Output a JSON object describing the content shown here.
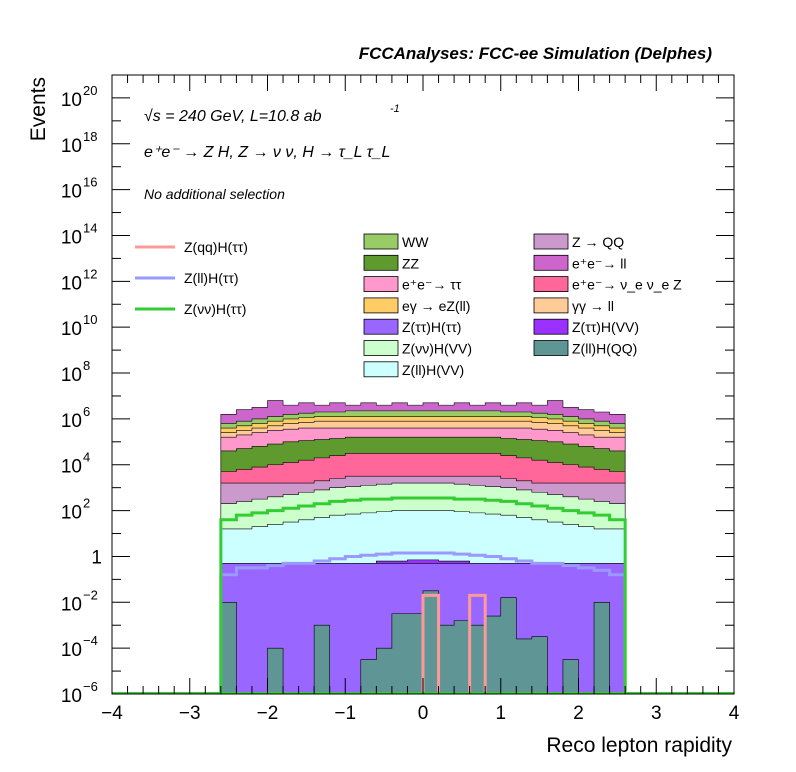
{
  "header": {
    "title": "FCCAnalyses: FCC-ee Simulation (Delphes)"
  },
  "annotations": {
    "energy": "√s = 240 GeV, L=10.8 ab",
    "energy_exp": "-1",
    "process": "e⁺e⁻ → Z H, Z → ν ν, H → τ_L τ_L",
    "selection": "No additional selection"
  },
  "chart_data": {
    "type": "histogram",
    "title": "FCCAnalyses: FCC-ee Simulation (Delphes)",
    "xlabel": "Reco lepton rapidity",
    "ylabel": "Events",
    "xlim": [
      -4,
      4
    ],
    "ylim": [
      1e-06,
      1e+21
    ],
    "yscale": "log",
    "x_ticks": [
      "−4",
      "−3",
      "−2",
      "−1",
      "0",
      "1",
      "2",
      "3",
      "4"
    ],
    "y_ticks": [
      {
        "base": "10",
        "exp": "20"
      },
      {
        "base": "10",
        "exp": "18"
      },
      {
        "base": "10",
        "exp": "16"
      },
      {
        "base": "10",
        "exp": "14"
      },
      {
        "base": "10",
        "exp": "12"
      },
      {
        "base": "10",
        "exp": "10"
      },
      {
        "base": "10",
        "exp": "8"
      },
      {
        "base": "10",
        "exp": "6"
      },
      {
        "base": "10",
        "exp": "4"
      },
      {
        "base": "10",
        "exp": "2"
      },
      {
        "base": "1",
        "exp": ""
      },
      {
        "base": "10",
        "exp": "−2"
      },
      {
        "base": "10",
        "exp": "−4"
      },
      {
        "base": "10",
        "exp": "−6"
      }
    ],
    "grid": false,
    "x_range_filled": [
      -2.6,
      2.6
    ],
    "stack_tops_log10": [
      {
        "name": "Z(ll)H(QQ)",
        "color": "#5f9595",
        "values": [
          -2.0,
          -6.5,
          -6.5,
          -4.0,
          -6.5,
          -6.5,
          -3.0,
          -6.5,
          -6.5,
          -4.5,
          -4.0,
          -2.5,
          -2.5,
          -1.5,
          -3.0,
          -2.8,
          -3.0,
          -2.6,
          -1.8,
          -3.6,
          -3.5,
          -6.5,
          -4.5,
          -6.5,
          -2.0,
          -6.5
        ]
      },
      {
        "name": "Z(ττ)H(VV)",
        "color": "#9b31ff",
        "values": [
          -1.2,
          -1.0,
          -1.0,
          -0.9,
          -0.8,
          -0.7,
          -0.6,
          -0.5,
          -0.4,
          -0.3,
          -0.2,
          -0.2,
          -0.15,
          -0.15,
          -0.2,
          -0.2,
          -0.3,
          -0.4,
          -0.5,
          -0.6,
          -0.7,
          -0.8,
          -0.9,
          -1.0,
          -1.0,
          -1.2
        ]
      },
      {
        "name": "Z(ll)H(VV)",
        "color": "#ccffff",
        "values": [
          1.2,
          1.2,
          1.3,
          1.4,
          1.5,
          1.6,
          1.7,
          1.8,
          1.85,
          1.9,
          1.95,
          2.0,
          2.0,
          2.0,
          2.0,
          1.95,
          1.9,
          1.85,
          1.8,
          1.7,
          1.6,
          1.5,
          1.4,
          1.3,
          1.2,
          1.2
        ]
      },
      {
        "name": "Z(νν)H(VV)",
        "color": "#ccffcc",
        "values": [
          2.3,
          2.4,
          2.5,
          2.6,
          2.7,
          2.8,
          2.9,
          3.0,
          3.05,
          3.1,
          3.15,
          3.2,
          3.2,
          3.2,
          3.2,
          3.15,
          3.1,
          3.05,
          3.0,
          2.9,
          2.8,
          2.7,
          2.6,
          2.5,
          2.4,
          2.3
        ]
      },
      {
        "name": "Z → QQ",
        "color": "#cc99cc",
        "values": [
          3.2,
          3.2,
          3.2,
          3.2,
          3.2,
          3.2,
          3.3,
          3.4,
          3.5,
          3.5,
          3.5,
          3.5,
          3.5,
          3.5,
          3.5,
          3.5,
          3.5,
          3.5,
          3.4,
          3.3,
          3.2,
          3.2,
          3.2,
          3.2,
          3.2,
          3.2
        ]
      },
      {
        "name": "e⁺e⁻ → ν_e ν_e Z",
        "color": "#ff6699",
        "values": [
          3.7,
          3.8,
          3.9,
          4.0,
          4.1,
          4.2,
          4.3,
          4.4,
          4.5,
          4.5,
          4.5,
          4.5,
          4.5,
          4.5,
          4.5,
          4.5,
          4.5,
          4.5,
          4.4,
          4.3,
          4.2,
          4.1,
          4.0,
          3.9,
          3.8,
          3.7
        ]
      },
      {
        "name": "ZZ",
        "color": "#5f9a2e",
        "values": [
          4.6,
          4.7,
          4.8,
          4.9,
          5.0,
          5.05,
          5.1,
          5.15,
          5.2,
          5.2,
          5.2,
          5.2,
          5.2,
          5.2,
          5.2,
          5.2,
          5.2,
          5.2,
          5.15,
          5.1,
          5.05,
          5.0,
          4.9,
          4.8,
          4.7,
          4.6
        ]
      },
      {
        "name": "e⁺e⁻ → ττ",
        "color": "#ff99cc",
        "values": [
          5.2,
          5.3,
          5.4,
          5.5,
          5.55,
          5.6,
          5.6,
          5.6,
          5.6,
          5.6,
          5.6,
          5.6,
          5.6,
          5.6,
          5.6,
          5.6,
          5.6,
          5.6,
          5.6,
          5.6,
          5.55,
          5.5,
          5.4,
          5.3,
          5.2,
          5.2
        ]
      },
      {
        "name": "γγ → ll",
        "color": "#ffcc99",
        "values": [
          5.4,
          5.5,
          5.6,
          5.7,
          5.8,
          5.85,
          5.9,
          5.9,
          5.9,
          5.9,
          5.9,
          5.9,
          5.9,
          5.9,
          5.9,
          5.9,
          5.9,
          5.9,
          5.9,
          5.9,
          5.85,
          5.8,
          5.7,
          5.6,
          5.5,
          5.4
        ]
      },
      {
        "name": "eγ → eZ(ll)",
        "color": "#ffcc66",
        "values": [
          5.6,
          5.7,
          5.8,
          5.9,
          6.0,
          6.05,
          6.1,
          6.1,
          6.1,
          6.1,
          6.1,
          6.1,
          6.1,
          6.1,
          6.1,
          6.1,
          6.1,
          6.1,
          6.1,
          6.1,
          6.05,
          6.0,
          5.9,
          5.8,
          5.7,
          5.6
        ]
      },
      {
        "name": "WW",
        "color": "#99cc66",
        "values": [
          5.8,
          5.9,
          6.0,
          6.1,
          6.2,
          6.25,
          6.3,
          6.3,
          6.35,
          6.35,
          6.35,
          6.35,
          6.35,
          6.35,
          6.35,
          6.35,
          6.35,
          6.35,
          6.3,
          6.3,
          6.25,
          6.2,
          6.1,
          6.0,
          5.9,
          5.8
        ]
      },
      {
        "name": "e⁺e⁻ → ll",
        "color": "#cc66cc",
        "values": [
          6.2,
          6.4,
          6.5,
          6.8,
          6.6,
          6.7,
          6.6,
          6.7,
          6.6,
          6.7,
          6.6,
          6.7,
          6.6,
          6.7,
          6.6,
          6.7,
          6.6,
          6.7,
          6.6,
          6.7,
          6.6,
          6.8,
          6.5,
          6.4,
          6.3,
          6.2
        ]
      },
      {
        "name": "Z(ττ)H(ττ)",
        "color": "#9966ff",
        "values": [
          -0.3,
          -0.3,
          -0.3,
          -0.3,
          -0.3,
          -0.3,
          -0.3,
          -0.3,
          -0.3,
          -0.3,
          -0.3,
          -0.3,
          -0.3,
          -0.3,
          -0.3,
          -0.3,
          -0.3,
          -0.3,
          -0.3,
          -0.3,
          -0.3,
          -0.3,
          -0.3,
          -0.3,
          -0.3,
          -0.3
        ]
      }
    ],
    "line_series_log10": [
      {
        "name": "Z(qq)H(ττ)",
        "color": "#ff9999",
        "segments": [
          {
            "x": [
              0.0,
              0.2
            ],
            "v": -1.7
          },
          {
            "x": [
              0.6,
              0.8
            ],
            "v": -1.7
          }
        ]
      },
      {
        "name": "Z(ll)H(ττ)",
        "color": "#9999ff",
        "values": [
          -0.8,
          -0.5,
          -0.5,
          -0.4,
          -0.3,
          -0.3,
          -0.2,
          -0.1,
          0.0,
          0.05,
          0.1,
          0.15,
          0.15,
          0.15,
          0.15,
          0.1,
          0.05,
          0.0,
          -0.1,
          -0.2,
          -0.3,
          -0.3,
          -0.4,
          -0.5,
          -0.6,
          -0.8
        ]
      },
      {
        "name": "Z(νν)H(ττ)",
        "color": "#33cc33",
        "values": [
          1.6,
          1.8,
          1.9,
          2.0,
          2.1,
          2.2,
          2.3,
          2.4,
          2.45,
          2.5,
          2.5,
          2.55,
          2.55,
          2.55,
          2.55,
          2.5,
          2.5,
          2.45,
          2.4,
          2.3,
          2.2,
          2.1,
          2.0,
          1.9,
          1.8,
          1.6
        ]
      }
    ],
    "legend_left": [
      {
        "label": "Z(qq)H(ττ)",
        "color": "#ff9999"
      },
      {
        "label": "Z(ll)H(ττ)",
        "color": "#9999ff"
      },
      {
        "label": "Z(νν)H(ττ)",
        "color": "#33cc33"
      }
    ],
    "legend_mid": [
      {
        "label": "WW",
        "color": "#99cc66"
      },
      {
        "label": "ZZ",
        "color": "#5f9a2e"
      },
      {
        "label": "e⁺e⁻→ ττ",
        "color": "#ff99cc"
      },
      {
        "label": "eγ → eZ(ll)",
        "color": "#ffcc66"
      },
      {
        "label": "Z(ττ)H(ττ)",
        "color": "#9966ff"
      },
      {
        "label": "Z(νν)H(VV)",
        "color": "#ccffcc"
      },
      {
        "label": "Z(ll)H(VV)",
        "color": "#ccffff"
      }
    ],
    "legend_right": [
      {
        "label": "Z → QQ",
        "color": "#cc99cc"
      },
      {
        "label": "e⁺e⁻→ ll",
        "color": "#cc66cc"
      },
      {
        "label": "e⁺e⁻→ ν_e ν_e Z",
        "color": "#ff6699"
      },
      {
        "label": "γγ → ll",
        "color": "#ffcc99"
      },
      {
        "label": "Z(ττ)H(VV)",
        "color": "#9b31ff"
      },
      {
        "label": "Z(ll)H(QQ)",
        "color": "#5f9595"
      }
    ]
  }
}
